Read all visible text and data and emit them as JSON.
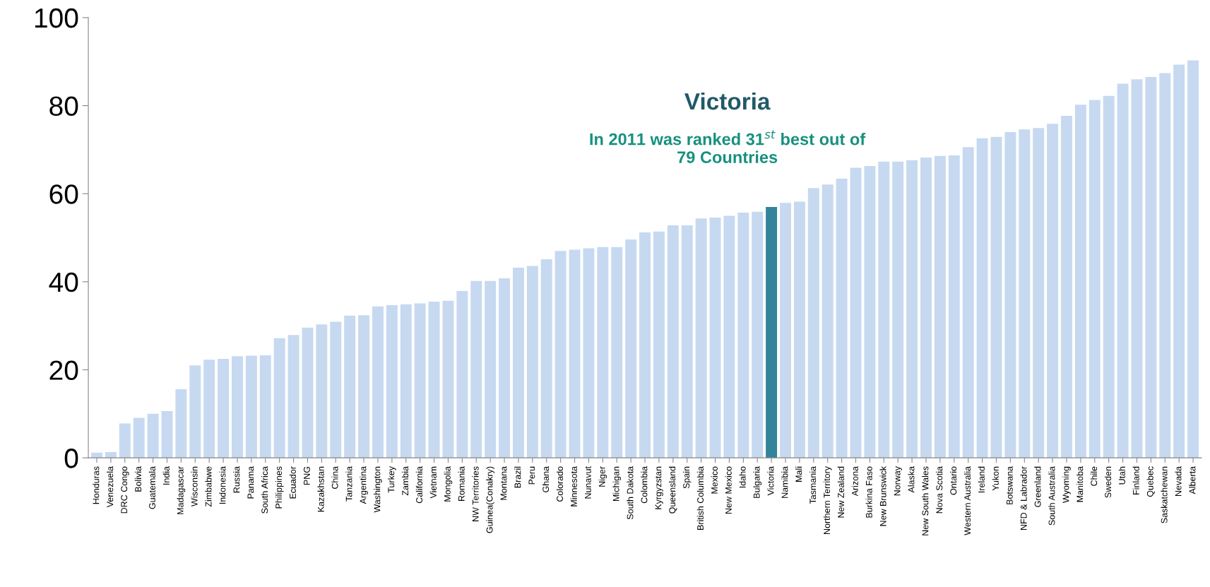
{
  "chart_data": {
    "type": "bar",
    "categories": [
      "Honduras",
      "Venezuela",
      "DRC Congo",
      "Bolivia",
      "Guatemala",
      "India",
      "Madagascar",
      "Wisconsin",
      "Zimbabwe",
      "Indonesia",
      "Russia",
      "Panama",
      "South Africa",
      "Philippines",
      "Ecuador",
      "PNG",
      "Kazakhstan",
      "China",
      "Tanzania",
      "Argentina",
      "Washington",
      "Turkey",
      "Zambia",
      "California",
      "Vietnam",
      "Mongolia",
      "Romania",
      "NW Territories",
      "Guinea(Conakry)",
      "Montana",
      "Brazil",
      "Peru",
      "Ghana",
      "Colorado",
      "Minnesota",
      "Nunavut",
      "Niger",
      "Michigan",
      "South Dakota",
      "Colombia",
      "Kyrgyzstan",
      "Queensland",
      "Spain",
      "British Columbia",
      "Mexico",
      "New Mexico",
      "Idaho",
      "Bulgaria",
      "Victoria",
      "Namibia",
      "Mali",
      "Tasmania",
      "Northern Territory",
      "New Zealand",
      "Arizona",
      "Burkina Faso",
      "New Brunswick",
      "Norway",
      "Alaska",
      "New South Wales",
      "Nova Scotia",
      "Ontario",
      "Western Australia",
      "Ireland",
      "Yukon",
      "Botswana",
      "NFD & Labrador",
      "Greenland",
      "South Australia",
      "Wyoming",
      "Manitoba",
      "Chile",
      "Sweden",
      "Utah",
      "Finland",
      "Quebec",
      "Saskatchewan",
      "Nevada",
      "Alberta"
    ],
    "values": [
      1.2,
      1.3,
      7.8,
      9.1,
      10,
      10.6,
      15.6,
      21,
      22.3,
      22.5,
      23.1,
      23.2,
      23.3,
      27.2,
      27.9,
      29.6,
      30.3,
      30.9,
      32.3,
      32.4,
      34.4,
      34.7,
      34.9,
      35.1,
      35.5,
      35.7,
      37.9,
      40.2,
      40.2,
      40.8,
      43.2,
      43.6,
      45.1,
      47,
      47.3,
      47.6,
      47.9,
      47.9,
      49.6,
      51.2,
      51.4,
      52.8,
      52.8,
      54.4,
      54.6,
      55,
      55.7,
      55.9,
      57,
      57.9,
      58.2,
      61.3,
      62.1,
      63.4,
      65.9,
      66.3,
      67.3,
      67.3,
      67.6,
      68.2,
      68.6,
      68.7,
      70.6,
      72.6,
      72.9,
      74,
      74.6,
      74.9,
      75.9,
      77.7,
      80.2,
      81.3,
      82.2,
      85,
      86,
      86.5,
      87.4,
      89.3,
      90.3
    ],
    "colors": [
      "#c6d9f1",
      "#c6d9f1",
      "#c6d9f1",
      "#c6d9f1",
      "#c6d9f1",
      "#c6d9f1",
      "#c6d9f1",
      "#c6d9f1",
      "#c6d9f1",
      "#c6d9f1",
      "#c6d9f1",
      "#c6d9f1",
      "#c6d9f1",
      "#c6d9f1",
      "#c6d9f1",
      "#c6d9f1",
      "#c6d9f1",
      "#c6d9f1",
      "#c6d9f1",
      "#c6d9f1",
      "#c6d9f1",
      "#c6d9f1",
      "#c6d9f1",
      "#c6d9f1",
      "#c6d9f1",
      "#c6d9f1",
      "#c6d9f1",
      "#c6d9f1",
      "#c6d9f1",
      "#c6d9f1",
      "#c6d9f1",
      "#c6d9f1",
      "#c6d9f1",
      "#c6d9f1",
      "#c6d9f1",
      "#c6d9f1",
      "#c6d9f1",
      "#c6d9f1",
      "#c6d9f1",
      "#c6d9f1",
      "#c6d9f1",
      "#c6d9f1",
      "#c6d9f1",
      "#c6d9f1",
      "#c6d9f1",
      "#c6d9f1",
      "#c6d9f1",
      "#c6d9f1",
      "#31849b",
      "#c6d9f1",
      "#c6d9f1",
      "#c6d9f1",
      "#c6d9f1",
      "#c6d9f1",
      "#c6d9f1",
      "#c6d9f1",
      "#c6d9f1",
      "#c6d9f1",
      "#c6d9f1",
      "#c6d9f1",
      "#c6d9f1",
      "#c6d9f1",
      "#c6d9f1",
      "#c6d9f1",
      "#c6d9f1",
      "#c6d9f1",
      "#c6d9f1",
      "#c6d9f1",
      "#c6d9f1",
      "#c6d9f1",
      "#c6d9f1",
      "#c6d9f1",
      "#c6d9f1",
      "#c6d9f1",
      "#c6d9f1",
      "#c6d9f1",
      "#c6d9f1",
      "#c6d9f1",
      "#c6d9f1"
    ],
    "ylim": [
      0,
      100
    ],
    "yticks": [
      0,
      20,
      40,
      60,
      80,
      100
    ],
    "grid": false,
    "legend": false,
    "annotations": [
      "Victoria",
      "In 2011 was ranked 31$^{st}$ best out of 79 Countries"
    ]
  }
}
